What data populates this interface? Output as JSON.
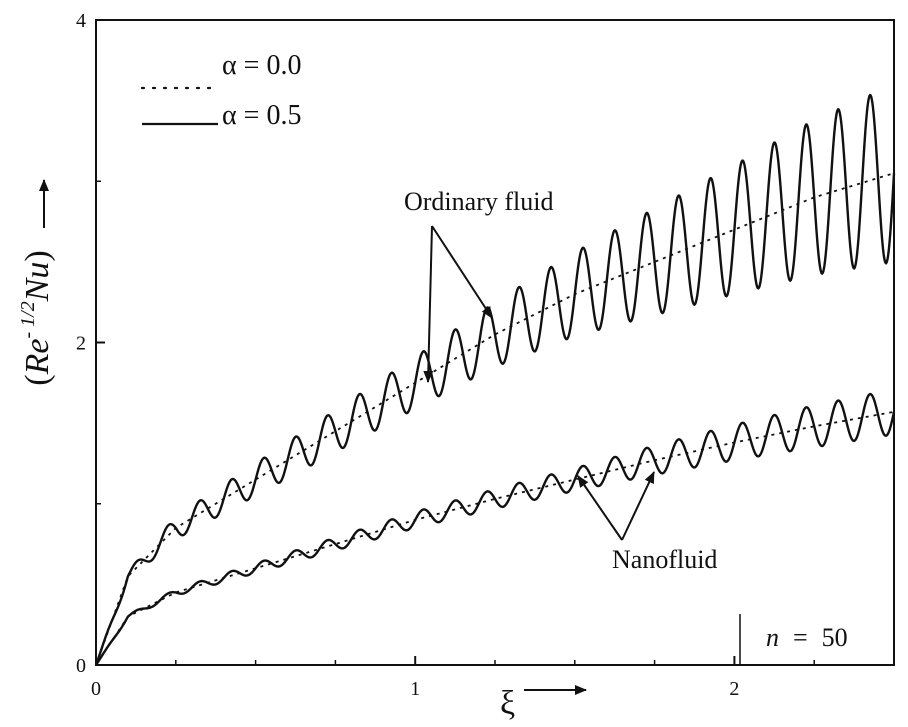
{
  "chart_data": {
    "type": "line",
    "title": "",
    "xlabel": "ξ",
    "ylabel_parts": {
      "open": "(",
      "re": "Re",
      "exp": "- 1/2",
      "nu": "Nu",
      "close": ")"
    },
    "xlim": [
      0,
      2.5
    ],
    "ylim": [
      0,
      4
    ],
    "xticks": [
      0,
      1,
      2
    ],
    "xtick_labels": [
      "0",
      "1",
      "2"
    ],
    "yticks": [
      0,
      2,
      4
    ],
    "ytick_labels": [
      "0",
      "2",
      "4"
    ],
    "grid": false,
    "legend": {
      "placement": "top-left",
      "entries": [
        {
          "label": "α = 0.0",
          "style": "dotted"
        },
        {
          "label": "α = 0.5",
          "style": "solid"
        }
      ]
    },
    "annotations": {
      "ordinary_fluid": "Ordinary fluid",
      "nanofluid": "Nanofluid",
      "param_label": "n",
      "param_eq": "=",
      "param_value": "50"
    },
    "oscillation_cycles": 25,
    "series": [
      {
        "name": "Ordinary fluid, α = 0.0",
        "style": "dotted",
        "x": [
          0,
          0.1,
          0.25,
          0.5,
          0.75,
          1.0,
          1.25,
          1.5,
          1.75,
          2.0,
          2.25,
          2.5
        ],
        "y": [
          0,
          0.55,
          0.85,
          1.15,
          1.45,
          1.75,
          2.05,
          2.3,
          2.5,
          2.7,
          2.9,
          3.05
        ]
      },
      {
        "name": "Ordinary fluid, α = 0.5",
        "style": "solid",
        "x": [
          0,
          0.1,
          0.25,
          0.5,
          0.75,
          1.0,
          1.25,
          1.5,
          1.75,
          2.0,
          2.25,
          2.5
        ],
        "y": [
          0,
          0.55,
          0.85,
          1.15,
          1.45,
          1.75,
          2.05,
          2.3,
          2.5,
          2.7,
          2.9,
          3.05
        ],
        "amplitude": [
          0,
          0.03,
          0.07,
          0.1,
          0.13,
          0.16,
          0.2,
          0.26,
          0.33,
          0.4,
          0.48,
          0.55
        ]
      },
      {
        "name": "Nanofluid, α = 0.0",
        "style": "dotted",
        "x": [
          0,
          0.1,
          0.25,
          0.5,
          0.75,
          1.0,
          1.25,
          1.5,
          1.75,
          2.0,
          2.25,
          2.5
        ],
        "y": [
          0,
          0.3,
          0.45,
          0.6,
          0.75,
          0.9,
          1.03,
          1.15,
          1.27,
          1.38,
          1.48,
          1.57
        ]
      },
      {
        "name": "Nanofluid, α = 0.5",
        "style": "solid",
        "x": [
          0,
          0.1,
          0.25,
          0.5,
          0.75,
          1.0,
          1.25,
          1.5,
          1.75,
          2.0,
          2.25,
          2.5
        ],
        "y": [
          0,
          0.3,
          0.45,
          0.6,
          0.75,
          0.9,
          1.03,
          1.15,
          1.27,
          1.38,
          1.48,
          1.57
        ],
        "amplitude": [
          0,
          0.01,
          0.02,
          0.03,
          0.04,
          0.05,
          0.06,
          0.07,
          0.09,
          0.11,
          0.13,
          0.14
        ]
      }
    ]
  }
}
